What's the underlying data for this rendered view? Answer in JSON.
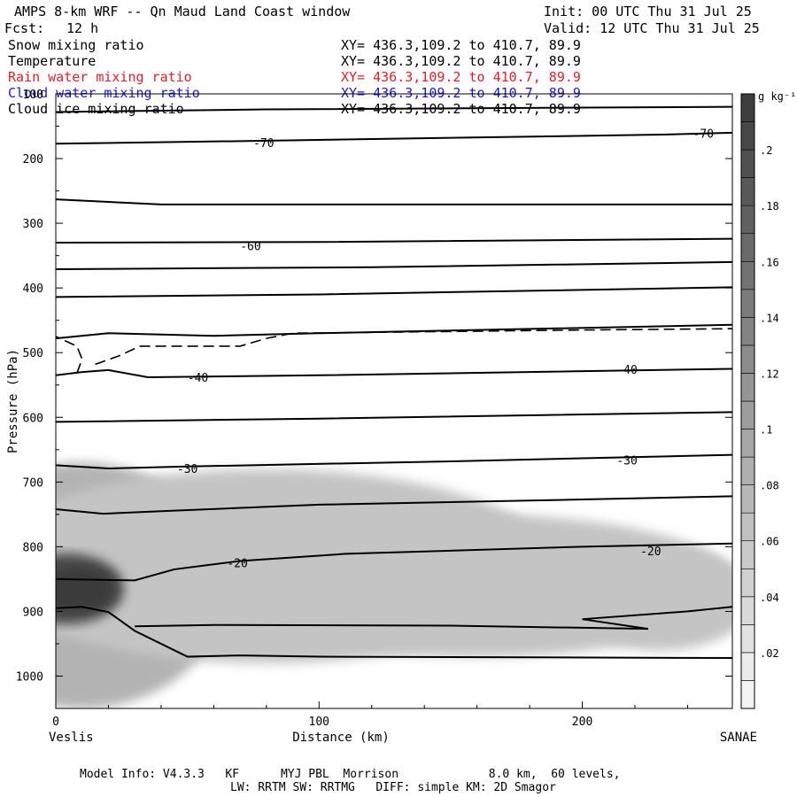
{
  "header": {
    "title": "AMPS 8-km WRF -- Qn Maud Land Coast window",
    "init": "Init: 00 UTC Thu 31 Jul 25",
    "fcst_label": "Fcst:",
    "fcst_value": "12 h",
    "valid": "Valid: 12 UTC Thu 31 Jul 25"
  },
  "fields": [
    {
      "name": "Snow mixing ratio",
      "xy": "XY= 436.3,109.2 to 410.7, 89.9",
      "color": "#000000"
    },
    {
      "name": "Temperature",
      "xy": "XY= 436.3,109.2 to 410.7, 89.9",
      "color": "#000000"
    },
    {
      "name": "Rain water mixing ratio",
      "xy": "XY= 436.3,109.2 to 410.7, 89.9",
      "color": "#e0202a"
    },
    {
      "name": "Cloud water mixing ratio",
      "xy": "XY= 436.3,109.2 to 410.7, 89.9",
      "color": "#1a1ad0"
    },
    {
      "name": "Cloud ice mixing ratio",
      "xy": "XY= 436.3,109.2 to 410.7, 89.9",
      "color": "#000000"
    }
  ],
  "footer": {
    "line1": "Model Info: V4.3.3   KF      MYJ PBL  Morrison             8.0 km,  60 levels,",
    "line2": "LW: RRTM SW: RRTMG   DIFF: simple KM: 2D Smagor"
  },
  "chart_data": {
    "type": "cross-section",
    "xlabel": "Distance (km)",
    "ylabel": "Pressure (hPa)",
    "x_range": [
      0,
      257
    ],
    "y_range": [
      1050,
      100
    ],
    "x_ticks": [
      0,
      100,
      200
    ],
    "y_ticks": [
      100,
      200,
      300,
      400,
      500,
      600,
      700,
      800,
      900,
      1000
    ],
    "left_endpoint": "Veslis",
    "right_endpoint": "SANAE",
    "colorbar": {
      "unit": "g kg⁻¹",
      "ticks": [
        ".02",
        ".04",
        ".06",
        ".08",
        ".1",
        ".12",
        ".14",
        ".16",
        ".18",
        ".2"
      ],
      "min": 0,
      "max": 0.22,
      "step": 0.01
    },
    "temperature_isotherms_labels": [
      {
        "text": "-70",
        "x": 79,
        "p": 175
      },
      {
        "text": "-70",
        "x": 246,
        "p": 161
      },
      {
        "text": "-60",
        "x": 74,
        "p": 335
      },
      {
        "text": "-40",
        "x": 54,
        "p": 538
      },
      {
        "text": "-40",
        "x": 217,
        "p": 526
      },
      {
        "text": "-30",
        "x": 50,
        "p": 679
      },
      {
        "text": "-30",
        "x": 217,
        "p": 666
      },
      {
        "text": "-20",
        "x": 69,
        "p": 825
      },
      {
        "text": "-20",
        "x": 226,
        "p": 806
      }
    ],
    "isotherms": [
      [
        [
          0,
          128
        ],
        [
          80,
          124
        ],
        [
          257,
          120
        ]
      ],
      [
        [
          0,
          177
        ],
        [
          70,
          173
        ],
        [
          150,
          168
        ],
        [
          230,
          163
        ],
        [
          257,
          160
        ]
      ],
      [
        [
          0,
          263
        ],
        [
          40,
          271
        ],
        [
          257,
          271
        ]
      ],
      [
        [
          0,
          330
        ],
        [
          100,
          329
        ],
        [
          257,
          324
        ]
      ],
      [
        [
          0,
          371
        ],
        [
          120,
          368
        ],
        [
          257,
          360
        ]
      ],
      [
        [
          0,
          414
        ],
        [
          100,
          410
        ],
        [
          257,
          399
        ]
      ],
      [
        [
          0,
          478
        ],
        [
          20,
          470
        ],
        [
          60,
          474
        ],
        [
          100,
          470
        ],
        [
          257,
          457
        ]
      ],
      [
        [
          0,
          535
        ],
        [
          10,
          530
        ],
        [
          20,
          527
        ],
        [
          35,
          538
        ],
        [
          100,
          535
        ],
        [
          257,
          525
        ]
      ],
      [
        [
          0,
          607
        ],
        [
          100,
          602
        ],
        [
          257,
          592
        ]
      ],
      [
        [
          0,
          674
        ],
        [
          20,
          679
        ],
        [
          50,
          676
        ],
        [
          150,
          668
        ],
        [
          257,
          658
        ]
      ],
      [
        [
          0,
          742
        ],
        [
          18,
          749
        ],
        [
          40,
          745
        ],
        [
          100,
          735
        ],
        [
          200,
          727
        ],
        [
          257,
          722
        ]
      ],
      [
        [
          0,
          850
        ],
        [
          30,
          852
        ],
        [
          45,
          835
        ],
        [
          70,
          822
        ],
        [
          110,
          811
        ],
        [
          200,
          800
        ],
        [
          257,
          795
        ]
      ],
      [
        [
          0,
          895
        ],
        [
          10,
          893
        ],
        [
          20,
          901
        ],
        [
          30,
          930
        ],
        [
          50,
          970
        ],
        [
          70,
          968
        ],
        [
          100,
          970
        ],
        [
          257,
          972
        ]
      ],
      [
        [
          30,
          923
        ],
        [
          60,
          921
        ],
        [
          150,
          922
        ],
        [
          225,
          927
        ],
        [
          200,
          912
        ],
        [
          240,
          900
        ],
        [
          257,
          893
        ]
      ]
    ],
    "dashed_contour": [
      [
        8,
        532
      ],
      [
        10,
        510
      ],
      [
        8,
        490
      ],
      [
        0,
        475
      ]
    ],
    "dashed_contour_2": [
      [
        15,
        518
      ],
      [
        24,
        505
      ],
      [
        32,
        490
      ],
      [
        70,
        490
      ],
      [
        80,
        478
      ],
      [
        90,
        470
      ],
      [
        200,
        465
      ],
      [
        257,
        463
      ]
    ],
    "snow_blobs": [
      {
        "x": 10,
        "p": 860,
        "rx": 55,
        "rp": 190,
        "value": 0.04
      },
      {
        "x": 80,
        "p": 830,
        "rx": 110,
        "rp": 150,
        "value": 0.02
      },
      {
        "x": 160,
        "p": 860,
        "rx": 100,
        "rp": 110,
        "value": 0.02
      },
      {
        "x": 230,
        "p": 880,
        "rx": 35,
        "rp": 80,
        "value": 0.02
      },
      {
        "x": 4,
        "p": 865,
        "rx": 22,
        "rp": 55,
        "value": 0.16
      },
      {
        "x": 8,
        "p": 866,
        "rx": 14,
        "rp": 35,
        "value": 0.2
      }
    ]
  }
}
